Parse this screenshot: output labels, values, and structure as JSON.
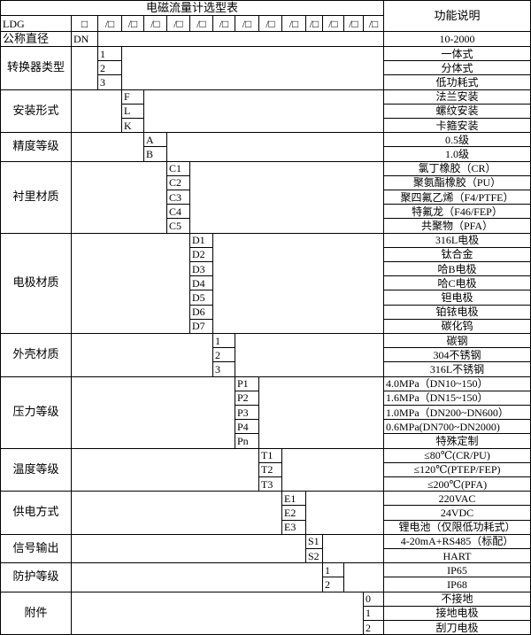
{
  "title": "电磁流量计选型表",
  "function_header": "功能说明",
  "model_prefix": "LDG",
  "code_slots": [
    "□",
    "/□",
    "/□",
    "/□",
    "/□",
    "/□",
    "/□",
    "/□",
    "/□",
    "/□",
    "/□",
    "/□",
    "/□",
    "/□"
  ],
  "nominal_diameter": {
    "label": "公称直径",
    "code": "DN",
    "desc": "10-2000"
  },
  "groups": [
    {
      "label": "转换器类型",
      "options": [
        {
          "code": "1",
          "desc": "一体式"
        },
        {
          "code": "2",
          "desc": "分体式"
        },
        {
          "code": "3",
          "desc": "低功耗式"
        }
      ]
    },
    {
      "label": "安装形式",
      "options": [
        {
          "code": "F",
          "desc": "法兰安装"
        },
        {
          "code": "L",
          "desc": "螺纹安装"
        },
        {
          "code": "K",
          "desc": "卡箍安装"
        }
      ]
    },
    {
      "label": "精度等级",
      "options": [
        {
          "code": "A",
          "desc": "0.5级"
        },
        {
          "code": "B",
          "desc": "1.0级"
        }
      ]
    },
    {
      "label": "衬里材质",
      "options": [
        {
          "code": "C1",
          "desc": "氯丁橡胶（CR）"
        },
        {
          "code": "C2",
          "desc": "聚氨酯橡胶（PU）"
        },
        {
          "code": "C3",
          "desc": "聚四氟乙烯（F4/PTFE）"
        },
        {
          "code": "C4",
          "desc": "特氟龙（F46/FEP）"
        },
        {
          "code": "C5",
          "desc": "共聚物（PFA）"
        }
      ]
    },
    {
      "label": "电极材质",
      "options": [
        {
          "code": "D1",
          "desc": "316L电极"
        },
        {
          "code": "D2",
          "desc": "钛合金"
        },
        {
          "code": "D3",
          "desc": "哈B电极"
        },
        {
          "code": "D4",
          "desc": "哈C电极"
        },
        {
          "code": "D5",
          "desc": "钽电极"
        },
        {
          "code": "D6",
          "desc": "铂铱电极"
        },
        {
          "code": "D7",
          "desc": "碳化钨"
        }
      ]
    },
    {
      "label": "外壳材质",
      "options": [
        {
          "code": "1",
          "desc": "碳钢"
        },
        {
          "code": "2",
          "desc": "304不锈钢"
        },
        {
          "code": "3",
          "desc": "316L不锈钢"
        }
      ]
    },
    {
      "label": "压力等级",
      "options": [
        {
          "code": "P1",
          "desc": "4.0MPa（DN10~150）"
        },
        {
          "code": "P2",
          "desc": "1.6MPa（DN15~150）"
        },
        {
          "code": "P3",
          "desc": "1.0MPa（DN200~DN600）"
        },
        {
          "code": "P4",
          "desc": "0.6MPa(DN700~DN2000)"
        },
        {
          "code": "Pn",
          "desc": "特殊定制"
        }
      ]
    },
    {
      "label": "温度等级",
      "options": [
        {
          "code": "T1",
          "desc": "≤80℃(CR/PU)"
        },
        {
          "code": "T2",
          "desc": "≤120℃(PTEP/FEP)"
        },
        {
          "code": "T3",
          "desc": "≤200℃(PFA)"
        }
      ]
    },
    {
      "label": "供电方式",
      "options": [
        {
          "code": "E1",
          "desc": "220VAC"
        },
        {
          "code": "E2",
          "desc": "24VDC"
        },
        {
          "code": "E3",
          "desc": "锂电池（仅限低功耗式）"
        }
      ]
    },
    {
      "label": "信号输出",
      "options": [
        {
          "code": "S1",
          "desc": "4-20mA+RS485（标配）"
        },
        {
          "code": "S2",
          "desc": "HART"
        }
      ]
    },
    {
      "label": "防护等级",
      "options": [
        {
          "code": "1",
          "desc": "IP65"
        },
        {
          "code": "2",
          "desc": "IP68"
        }
      ]
    },
    {
      "label": "附件",
      "options": [
        {
          "code": "0",
          "desc": "不接地"
        },
        {
          "code": "1",
          "desc": "接地电极"
        },
        {
          "code": "2",
          "desc": "刮刀电极"
        }
      ]
    }
  ]
}
